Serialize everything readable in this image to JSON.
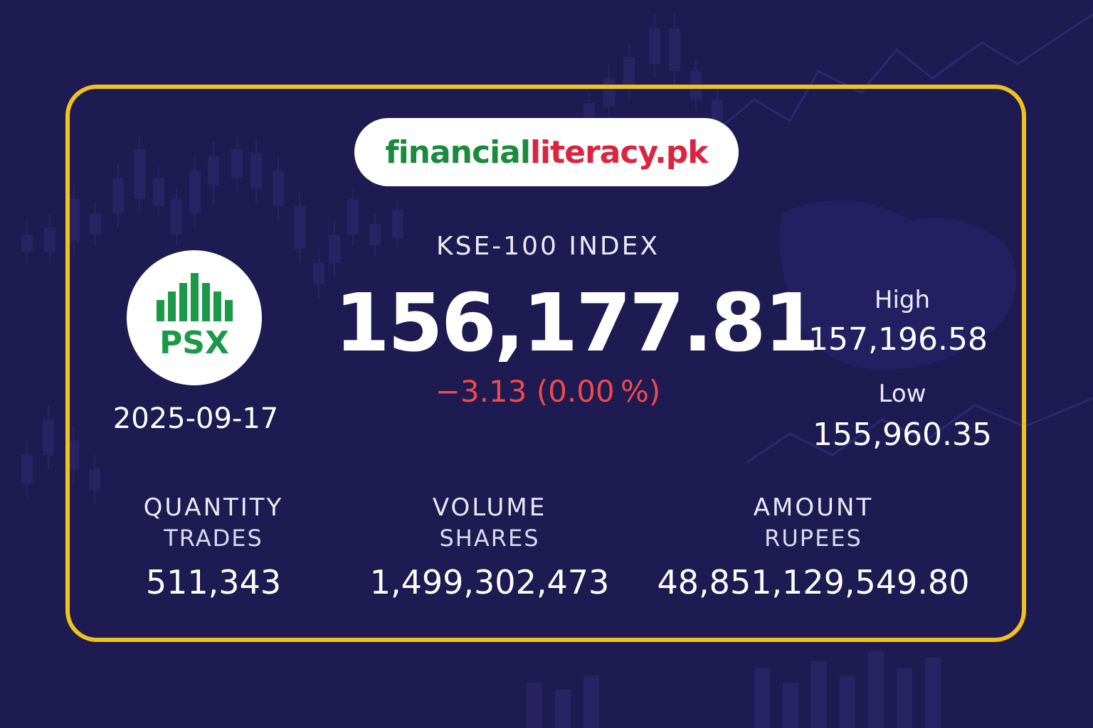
{
  "brand": {
    "part1": "financial",
    "part2": "literacy.pk"
  },
  "logo": {
    "text": "PSX",
    "icon": "psx-bars-icon",
    "color": "#1a9a48"
  },
  "date": "2025-09-17",
  "index": {
    "name": "KSE-100 INDEX",
    "value": "156,177.81",
    "change": "−3.13",
    "change_pct": "(0.00 %)"
  },
  "high": {
    "label": "High",
    "value": "157,196.58"
  },
  "low": {
    "label": "Low",
    "value": "155,960.35"
  },
  "metrics": [
    {
      "title": "QUANTITY",
      "sub": "TRADES",
      "value": "511,343"
    },
    {
      "title": "VOLUME",
      "sub": "SHARES",
      "value": "1,499,302,473"
    },
    {
      "title": "AMOUNT",
      "sub": "RUPEES",
      "value": "48,851,129,549.80"
    }
  ],
  "colors": {
    "background": "#1e1a52",
    "border": "#f2c21c",
    "negative": "#ef4a4a",
    "brand_green": "#1a8a3c",
    "brand_red": "#d9253f"
  }
}
